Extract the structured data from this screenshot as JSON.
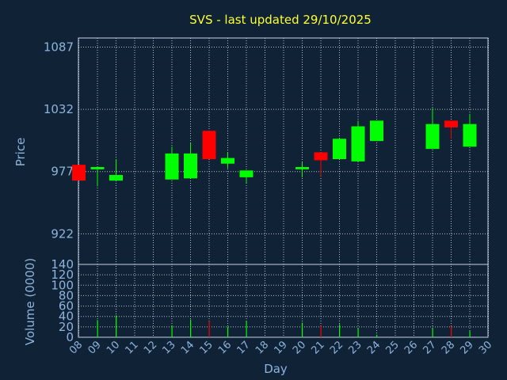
{
  "chart_data": [
    {
      "type": "candlestick",
      "title": "SVS - last updated 29/10/2025",
      "ylabel": "Price",
      "ylim": [
        895,
        1095
      ],
      "yticks": [
        922,
        977,
        1032,
        1087
      ],
      "grid": true,
      "candles": [
        {
          "day": 8,
          "open": 983,
          "close": 969,
          "high": 983,
          "low": 969
        },
        {
          "day": 9,
          "open": 979,
          "close": 981,
          "high": 981,
          "low": 964
        },
        {
          "day": 10,
          "open": 969,
          "close": 974,
          "high": 988,
          "low": 969
        },
        {
          "day": 13,
          "open": 970,
          "close": 993,
          "high": 999,
          "low": 970
        },
        {
          "day": 14,
          "open": 971,
          "close": 993,
          "high": 1002,
          "low": 971
        },
        {
          "day": 15,
          "open": 1013,
          "close": 988,
          "high": 1013,
          "low": 988
        },
        {
          "day": 16,
          "open": 984,
          "close": 989,
          "high": 994,
          "low": 980
        },
        {
          "day": 17,
          "open": 972,
          "close": 978,
          "high": 978,
          "low": 967
        },
        {
          "day": 20,
          "open": 979,
          "close": 981,
          "high": 985,
          "low": 972
        },
        {
          "day": 21,
          "open": 994,
          "close": 987,
          "high": 994,
          "low": 973
        },
        {
          "day": 22,
          "open": 988,
          "close": 1006,
          "high": 1007,
          "low": 988
        },
        {
          "day": 23,
          "open": 986,
          "close": 1017,
          "high": 1022,
          "low": 986
        },
        {
          "day": 24,
          "open": 1004,
          "close": 1022,
          "high": 1022,
          "low": 1004
        },
        {
          "day": 27,
          "open": 997,
          "close": 1019,
          "high": 1033,
          "low": 997
        },
        {
          "day": 28,
          "open": 1022,
          "close": 1016,
          "high": 1022,
          "low": 1006
        },
        {
          "day": 29,
          "open": 999,
          "close": 1019,
          "high": 1028,
          "low": 999
        }
      ]
    },
    {
      "type": "bar",
      "xlabel": "Day",
      "ylabel": "Volume (0000)",
      "ylim": [
        0,
        140
      ],
      "yticks": [
        0,
        20,
        40,
        60,
        80,
        100,
        120,
        140
      ],
      "xticks": [
        "08",
        "09",
        "10",
        "11",
        "12",
        "13",
        "14",
        "15",
        "16",
        "17",
        "18",
        "19",
        "20",
        "21",
        "22",
        "23",
        "24",
        "25",
        "26",
        "27",
        "28",
        "29",
        "30"
      ],
      "grid": true,
      "bars": [
        {
          "day": 8,
          "value": 0,
          "up": false
        },
        {
          "day": 9,
          "value": 33,
          "up": true
        },
        {
          "day": 10,
          "value": 42,
          "up": true
        },
        {
          "day": 13,
          "value": 23,
          "up": true
        },
        {
          "day": 14,
          "value": 34,
          "up": true
        },
        {
          "day": 15,
          "value": 31,
          "up": false
        },
        {
          "day": 16,
          "value": 20,
          "up": true
        },
        {
          "day": 17,
          "value": 31,
          "up": true
        },
        {
          "day": 20,
          "value": 28,
          "up": true
        },
        {
          "day": 21,
          "value": 22,
          "up": false
        },
        {
          "day": 22,
          "value": 25,
          "up": true
        },
        {
          "day": 23,
          "value": 17,
          "up": true
        },
        {
          "day": 24,
          "value": 5,
          "up": true
        },
        {
          "day": 27,
          "value": 17,
          "up": true
        },
        {
          "day": 28,
          "value": 22,
          "up": false
        },
        {
          "day": 29,
          "value": 12,
          "up": true
        }
      ]
    }
  ],
  "colors": {
    "up": "#00ff00",
    "down": "#ff0000",
    "background": "#0f2236",
    "title": "#ffff33",
    "axis_text": "#8fb4dc"
  }
}
